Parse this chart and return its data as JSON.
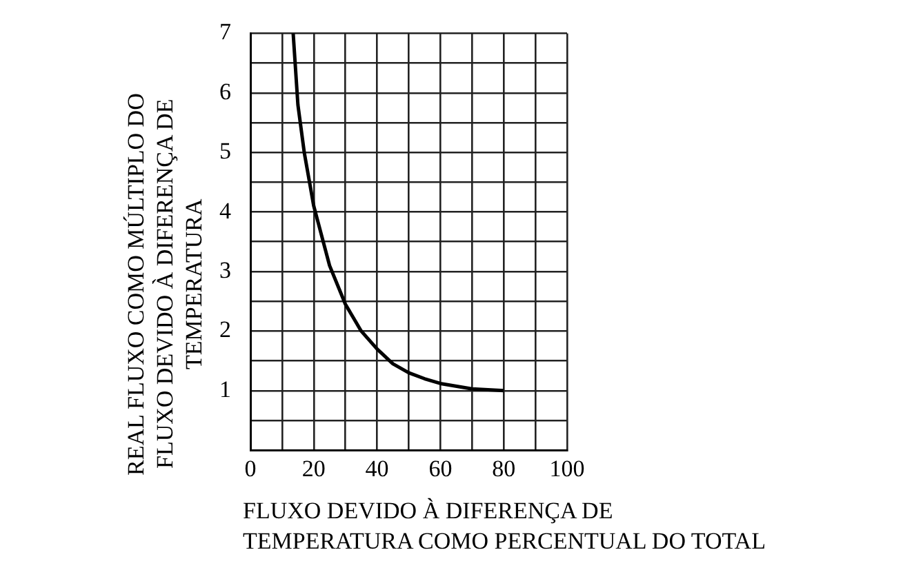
{
  "chart_data": {
    "type": "line",
    "xlabel": "FLUXO DEVIDO À DIFERENÇA DE\nTEMPERATURA COMO PERCENTUAL DO TOTAL",
    "ylabel": "REAL FLUXO COMO MÚLTIPLO DO\nFLUXO DEVIDO À DIFERENÇA DE\nTEMPERATURA",
    "x": [
      13.5,
      15,
      17,
      20,
      25,
      30,
      35,
      40,
      45,
      50,
      55,
      60,
      70,
      80
    ],
    "series": [
      {
        "color": "#000000",
        "values": [
          7,
          5.8,
          5,
          4.1,
          3.1,
          2.45,
          2.0,
          1.7,
          1.45,
          1.3,
          1.2,
          1.12,
          1.03,
          1.0
        ]
      }
    ],
    "xlim": [
      0,
      100
    ],
    "xticks": [
      0,
      {
        "value": 10,
        "label": null
      },
      20,
      {
        "value": 30,
        "label": null
      },
      40,
      {
        "value": 50,
        "label": null
      },
      60,
      {
        "value": 70,
        "label": null
      },
      80,
      {
        "value": 90,
        "label": null
      },
      100
    ],
    "ylim": [
      0,
      7
    ],
    "yticks": [
      {
        "value": 0,
        "label": null
      },
      {
        "value": 0.5,
        "label": null
      },
      1,
      {
        "value": 1.5,
        "label": null
      },
      2,
      {
        "value": 2.5,
        "label": null
      },
      3,
      {
        "value": 3.5,
        "label": null
      },
      4,
      {
        "value": 4.5,
        "label": null
      },
      5,
      {
        "value": 5.5,
        "label": null
      },
      6,
      {
        "value": 6.5,
        "label": null
      },
      7
    ],
    "grid": true,
    "legend": false,
    "marker": "none",
    "line_style": "solid"
  }
}
